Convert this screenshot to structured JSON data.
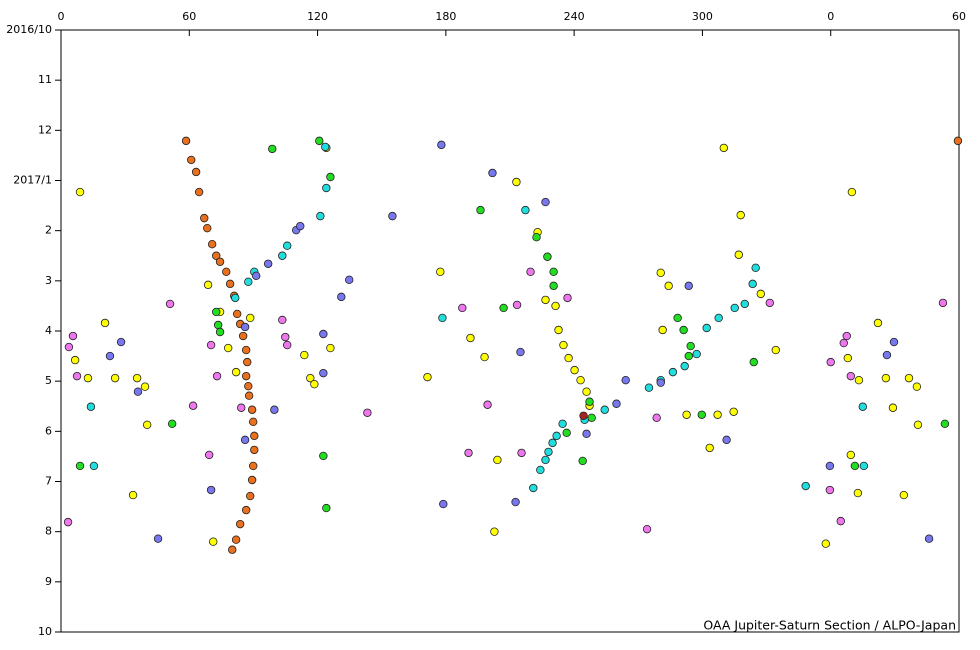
{
  "chart_data": {
    "type": "scatter",
    "credit": "OAA Jupiter-Saturn Section / ALPO-Japan",
    "xlim": [
      0,
      420
    ],
    "xticks": [
      0,
      60,
      120,
      180,
      240,
      300,
      {
        "value": 360,
        "label": "0"
      },
      {
        "value": 420,
        "label": "60"
      }
    ],
    "ylim": [
      0,
      12
    ],
    "y_reversed": true,
    "yticks": [
      {
        "value": 0,
        "label": "2016/10"
      },
      {
        "value": 1,
        "label": "11"
      },
      {
        "value": 2,
        "label": "12"
      },
      {
        "value": 3,
        "label": "2017/1"
      },
      {
        "value": 4,
        "label": "2"
      },
      {
        "value": 5,
        "label": "3"
      },
      {
        "value": 6,
        "label": "4"
      },
      {
        "value": 7,
        "label": "5"
      },
      {
        "value": 8,
        "label": "6"
      },
      {
        "value": 9,
        "label": "7"
      },
      {
        "value": 10,
        "label": "8"
      },
      {
        "value": 11,
        "label": "9"
      },
      {
        "value": 12,
        "label": "10"
      }
    ],
    "series": [
      {
        "color": "#e8701e",
        "x": [
          58.5,
          60.9,
          63.2,
          64.6,
          67.0,
          68.4,
          70.7,
          72.6,
          74.4,
          77.3,
          79.1,
          81.0,
          82.4,
          83.8,
          85.2,
          86.6,
          87.1,
          86.6,
          87.6,
          88.0,
          89.4,
          89.9,
          90.4,
          90.4,
          89.9,
          89.4,
          88.5,
          86.6,
          83.8,
          81.9,
          80.1,
          419.5
        ],
        "y": [
          2.21,
          2.59,
          2.83,
          3.23,
          3.75,
          3.95,
          4.27,
          4.5,
          4.62,
          4.82,
          5.06,
          5.3,
          5.66,
          5.86,
          6.1,
          6.38,
          6.62,
          6.9,
          7.1,
          7.29,
          7.57,
          7.81,
          8.09,
          8.37,
          8.69,
          8.97,
          9.29,
          9.57,
          9.85,
          10.16,
          10.36,
          2.21
        ]
      },
      {
        "color": "#ffff00",
        "x": [
          8.9,
          6.6,
          12.6,
          20.6,
          25.3,
          35.6,
          39.3,
          40.3,
          33.7,
          71.2,
          68.8,
          74.4,
          78.2,
          81.9,
          88.5,
          113.8,
          116.6,
          118.5,
          126.0,
          124.1,
          171.4,
          177.4,
          191.5,
          198.1,
          204.1,
          202.7,
          213.0,
          222.9,
          226.6,
          231.3,
          232.7,
          235.0,
          237.4,
          240.2,
          243.0,
          245.8,
          247.2,
          281.4,
          284.2,
          280.5,
          292.6,
          307.1,
          310.0,
          317.9,
          317.0,
          327.3,
          334.3,
          314.6,
          303.4,
          357.7,
          369.9,
          368.0,
          373.2,
          382.1,
          385.8,
          389.1,
          396.6,
          400.3,
          400.8,
          394.2,
          369.4,
          372.7
        ],
        "y": [
          3.23,
          6.58,
          6.94,
          5.84,
          6.94,
          6.94,
          7.11,
          7.87,
          9.27,
          10.2,
          5.08,
          5.62,
          6.34,
          6.82,
          5.74,
          6.48,
          6.94,
          7.06,
          6.34,
          2.35,
          6.92,
          4.82,
          6.14,
          6.52,
          8.57,
          10.0,
          3.03,
          4.03,
          5.38,
          5.5,
          5.98,
          6.28,
          6.54,
          6.78,
          6.98,
          7.21,
          7.49,
          5.98,
          5.1,
          4.84,
          7.67,
          7.67,
          2.35,
          3.69,
          4.48,
          5.26,
          6.38,
          7.61,
          8.33,
          10.24,
          3.23,
          6.54,
          6.98,
          5.84,
          6.94,
          7.53,
          6.94,
          7.11,
          7.87,
          9.27,
          8.47,
          9.23
        ]
      },
      {
        "color": "#22dd22",
        "x": [
          98.8,
          120.8,
          126.0,
          72.6,
          73.5,
          74.4,
          52.0,
          8.9,
          122.7,
          124.1,
          196.2,
          207.0,
          222.4,
          227.5,
          230.4,
          230.4,
          247.2,
          248.2,
          236.5,
          244.0,
          288.4,
          291.2,
          294.5,
          293.6,
          299.7,
          324.0,
          371.3,
          413.4
        ],
        "y": [
          2.37,
          2.21,
          2.93,
          5.62,
          5.88,
          6.02,
          7.85,
          8.69,
          8.49,
          9.53,
          3.59,
          5.54,
          4.13,
          4.52,
          4.82,
          5.1,
          7.41,
          7.73,
          8.03,
          8.59,
          5.74,
          5.98,
          6.3,
          6.5,
          7.67,
          6.62,
          8.69,
          7.85
        ]
      },
      {
        "color": "#22dddd",
        "x": [
          123.6,
          124.1,
          121.3,
          87.6,
          90.4,
          103.5,
          105.8,
          81.5,
          14.0,
          15.4,
          178.4,
          217.2,
          220.9,
          224.2,
          226.6,
          228.0,
          229.9,
          231.8,
          234.6,
          244.9,
          254.3,
          275.0,
          280.5,
          286.2,
          291.7,
          297.3,
          302.0,
          307.6,
          315.1,
          319.8,
          323.5,
          324.9,
          375.5,
          375.0,
          348.3
        ],
        "y": [
          2.33,
          3.15,
          3.71,
          5.02,
          4.82,
          4.5,
          4.3,
          5.34,
          7.51,
          8.69,
          5.74,
          3.59,
          9.13,
          8.77,
          8.57,
          8.41,
          8.23,
          8.09,
          7.85,
          7.77,
          7.57,
          7.13,
          6.98,
          6.82,
          6.7,
          6.46,
          5.94,
          5.74,
          5.54,
          5.46,
          5.06,
          4.74,
          8.69,
          7.51,
          9.09
        ]
      },
      {
        "color": "#7777ee",
        "x": [
          22.9,
          28.1,
          45.4,
          36.0,
          70.2,
          86.1,
          86.1,
          96.9,
          91.3,
          99.8,
          110.0,
          111.9,
          122.7,
          122.7,
          131.1,
          134.8,
          155.0,
          177.9,
          178.8,
          201.8,
          214.9,
          226.6,
          212.6,
          245.8,
          264.1,
          259.8,
          280.5,
          293.6,
          311.3,
          359.6,
          386.3,
          389.6,
          406.0
        ],
        "y": [
          6.5,
          6.22,
          10.14,
          7.21,
          9.17,
          8.17,
          5.92,
          4.66,
          4.9,
          7.57,
          3.99,
          3.91,
          6.06,
          6.84,
          5.32,
          4.98,
          3.71,
          2.29,
          9.45,
          2.85,
          6.42,
          3.43,
          9.41,
          8.05,
          6.98,
          7.45,
          7.03,
          5.1,
          8.17,
          8.69,
          6.48,
          6.22,
          10.14
        ]
      },
      {
        "color": "#ee77ee",
        "x": [
          5.6,
          3.7,
          7.5,
          3.3,
          51.0,
          61.8,
          69.3,
          70.2,
          73.0,
          84.3,
          103.5,
          104.9,
          105.8,
          143.3,
          187.7,
          190.6,
          199.5,
          215.4,
          213.3,
          219.6,
          236.9,
          278.6,
          274.1,
          331.5,
          360.0,
          366.1,
          367.5,
          369.4,
          359.6,
          364.7,
          412.5
        ],
        "y": [
          6.1,
          6.32,
          6.9,
          9.81,
          5.46,
          7.49,
          8.47,
          6.28,
          6.9,
          7.53,
          5.78,
          6.12,
          6.28,
          7.63,
          5.54,
          8.43,
          7.47,
          8.43,
          5.48,
          4.82,
          5.34,
          7.73,
          9.95,
          5.44,
          6.62,
          6.24,
          6.1,
          6.9,
          9.17,
          9.79,
          5.44
        ]
      },
      {
        "color": "#aa2222",
        "x": [
          244.4
        ],
        "y": [
          7.69
        ]
      }
    ]
  }
}
